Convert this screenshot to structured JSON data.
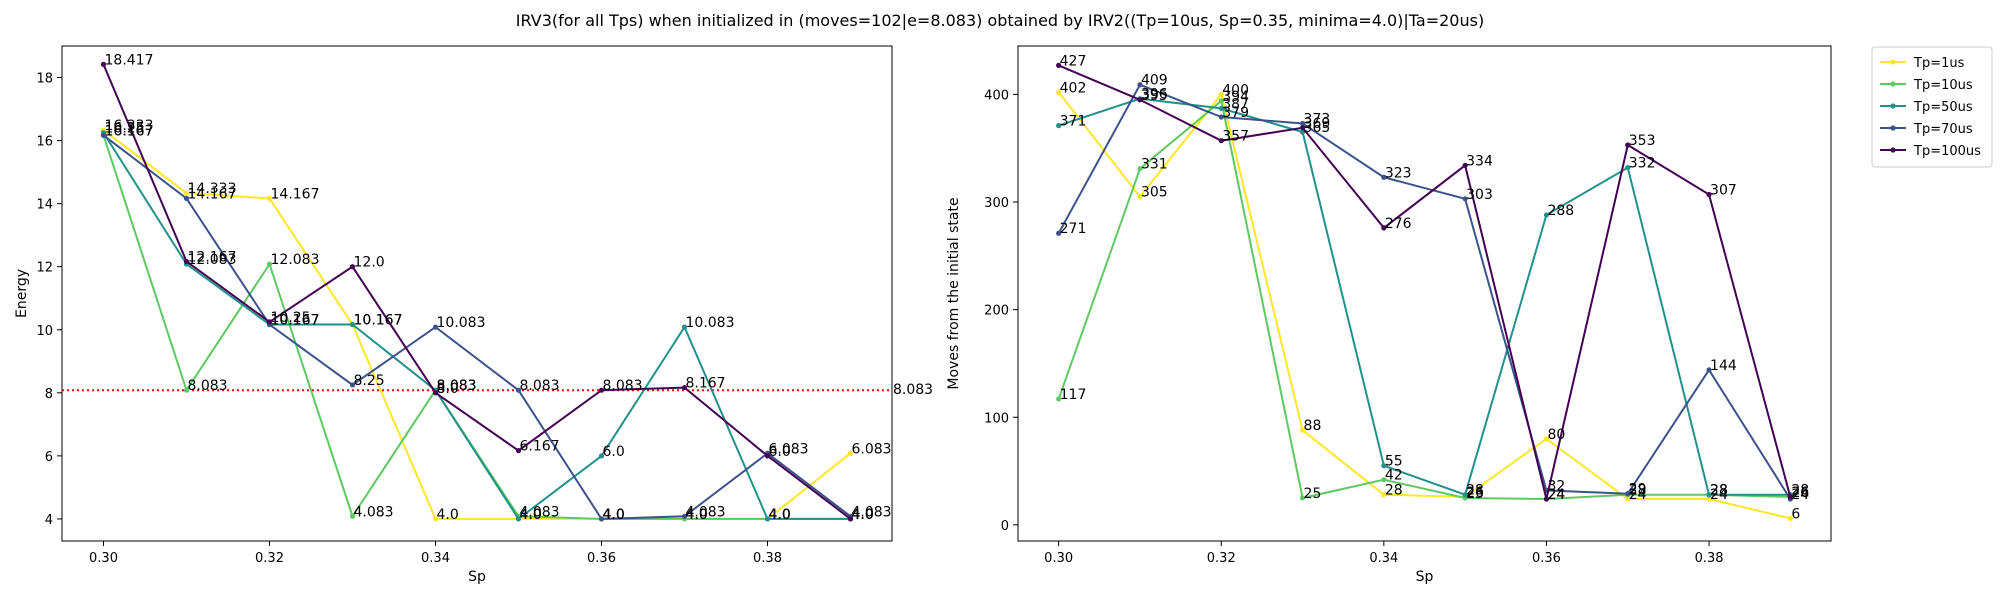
{
  "figure": {
    "title": "IRV3(for all Tps) when initialized in (moves=102|e=8.083) obtained by IRV2((Tp=10us, Sp=0.35, minima=4.0)|Ta=20us)"
  },
  "legend": {
    "placement": "outside-right-top",
    "entries": [
      "Tp=1us",
      "Tp=10us",
      "Tp=50us",
      "Tp=70us",
      "Tp=100us"
    ]
  },
  "series_colors": [
    "#fde725",
    "#5ec962",
    "#21918c",
    "#3b528b",
    "#440154"
  ],
  "chart_data": [
    {
      "type": "line",
      "xlabel": "Sp",
      "ylabel": "Energy",
      "xlim": [
        0.295,
        0.395
      ],
      "ylim": [
        3.3,
        19.0
      ],
      "xticks": [
        0.3,
        0.32,
        0.34,
        0.36,
        0.38
      ],
      "xtick_labels": [
        "0.30",
        "0.32",
        "0.34",
        "0.36",
        "0.38"
      ],
      "yticks": [
        4,
        6,
        8,
        10,
        12,
        14,
        16,
        18
      ],
      "ytick_labels": [
        "4",
        "6",
        "8",
        "10",
        "12",
        "14",
        "16",
        "18"
      ],
      "grid": false,
      "x": [
        0.3,
        0.31,
        0.32,
        0.33,
        0.34,
        0.35,
        0.36,
        0.37,
        0.38,
        0.39
      ],
      "series": [
        {
          "name": "Tp=1us",
          "values": [
            16.333,
            14.333,
            14.167,
            10.167,
            4.0,
            4.0,
            4.0,
            4.0,
            4.0,
            6.083
          ],
          "labels": [
            "16.333",
            "14.333",
            "14.167",
            "10.167",
            "4.0",
            "4.0",
            "4.0",
            "4.0",
            "4.0",
            "6.083"
          ]
        },
        {
          "name": "Tp=10us",
          "values": [
            16.167,
            8.083,
            12.083,
            4.083,
            8.083,
            4.083,
            4.0,
            4.0,
            4.0,
            4.0
          ],
          "labels": [
            "16.167",
            "8.083",
            "12.083",
            "4.083",
            "8.083",
            "4.083",
            "4.0",
            "4.0",
            "4.0",
            "4.0"
          ]
        },
        {
          "name": "Tp=50us",
          "values": [
            16.25,
            12.083,
            10.167,
            10.167,
            8.083,
            4.0,
            6.0,
            10.083,
            4.0,
            4.0
          ],
          "labels": [
            "16.25",
            "12.083",
            "10.167",
            "10.167",
            "8.083",
            "4.0",
            "6.0",
            "10.083",
            "4.0",
            "4.0"
          ]
        },
        {
          "name": "Tp=70us",
          "values": [
            16.167,
            14.167,
            10.167,
            8.25,
            10.083,
            8.083,
            4.0,
            4.083,
            6.083,
            4.083
          ],
          "labels": [
            "16.167",
            "14.167",
            "10.167",
            "8.25",
            "10.083",
            "8.083",
            "4.0",
            "4.083",
            "6.083",
            "4.083"
          ]
        },
        {
          "name": "Tp=100us",
          "values": [
            18.417,
            12.167,
            10.25,
            12.0,
            8.0,
            6.167,
            8.083,
            8.167,
            6.0,
            4.0
          ],
          "labels": [
            "18.417",
            "12.167",
            "10.25",
            "12.0",
            "8.0",
            "6.167",
            "8.083",
            "8.167",
            "6.0",
            "4.0"
          ]
        }
      ],
      "reference_line": {
        "y": 8.083,
        "label": "8.083",
        "color": "#ff0000",
        "style": "dotted"
      }
    },
    {
      "type": "line",
      "xlabel": "Sp",
      "ylabel": "Moves from the initial state",
      "xlim": [
        0.295,
        0.395
      ],
      "ylim": [
        -15,
        445
      ],
      "xticks": [
        0.3,
        0.32,
        0.34,
        0.36,
        0.38
      ],
      "xtick_labels": [
        "0.30",
        "0.32",
        "0.34",
        "0.36",
        "0.38"
      ],
      "yticks": [
        0,
        100,
        200,
        300,
        400
      ],
      "ytick_labels": [
        "0",
        "100",
        "200",
        "300",
        "400"
      ],
      "grid": false,
      "x": [
        0.3,
        0.31,
        0.32,
        0.33,
        0.34,
        0.35,
        0.36,
        0.37,
        0.38,
        0.39
      ],
      "series": [
        {
          "name": "Tp=1us",
          "values": [
            402,
            305,
            400,
            88,
            28,
            26,
            80,
            24,
            24,
            6
          ],
          "labels": [
            "402",
            "305",
            "400",
            "88",
            "28",
            "26",
            "80",
            "24",
            "24",
            "6"
          ]
        },
        {
          "name": "Tp=10us",
          "values": [
            117,
            331,
            394,
            25,
            42,
            25,
            24,
            28,
            28,
            26
          ],
          "labels": [
            "117",
            "331",
            "394",
            "25",
            "42",
            "25",
            "24",
            "28",
            "28",
            "26"
          ]
        },
        {
          "name": "Tp=50us",
          "values": [
            371,
            396,
            387,
            365,
            55,
            28,
            288,
            332,
            28,
            28
          ],
          "labels": [
            "371",
            "396",
            "387",
            "365",
            "55",
            "28",
            "288",
            "332",
            "28",
            "28"
          ]
        },
        {
          "name": "Tp=70us",
          "values": [
            271,
            409,
            379,
            373,
            323,
            303,
            32,
            29,
            144,
            24
          ],
          "labels": [
            "271",
            "409",
            "379",
            "373",
            "323",
            "303",
            "32",
            "29",
            "144",
            "24"
          ]
        },
        {
          "name": "Tp=100us",
          "values": [
            427,
            395,
            357,
            369,
            276,
            334,
            24,
            353,
            307,
            26
          ],
          "labels": [
            "427",
            "395",
            "357",
            "369",
            "276",
            "334",
            "24",
            "353",
            "307",
            "26"
          ]
        }
      ]
    }
  ]
}
